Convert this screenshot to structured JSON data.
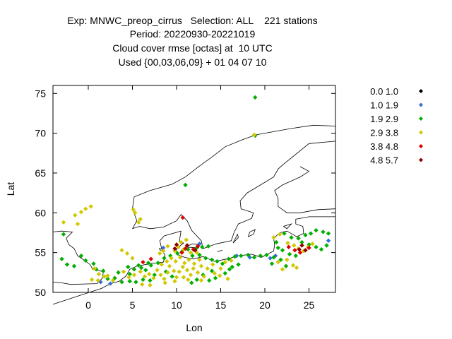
{
  "title": {
    "lines": [
      "Exp: MNWC_preop_cirrus   Selection: ALL    221 stations",
      "Period: 20220930-20221019",
      "Cloud cover rmse [octas] at  10 UTC",
      "Used {00,03,06,09} + 01 04 07 10"
    ]
  },
  "chart_data": {
    "type": "scatter",
    "title": "Cloud cover rmse [octas] at  10 UTC",
    "xlabel": "Lon",
    "ylabel": "Lat",
    "xlim": [
      -4,
      28
    ],
    "ylim": [
      50,
      76
    ],
    "xticks": [
      0,
      5,
      10,
      15,
      20,
      25
    ],
    "yticks": [
      50,
      55,
      60,
      65,
      70,
      75
    ],
    "grid": false,
    "legend_position": "right",
    "basemap": "coastlines",
    "series": [
      {
        "name": "0.0 1.0",
        "color": "#000000",
        "points": []
      },
      {
        "name": "1.0 1.9",
        "color": "#3a6fd8",
        "points": [
          [
            1.4,
            51.3
          ],
          [
            2.5,
            51.1
          ],
          [
            16.8,
            54.6
          ],
          [
            18.3,
            54.4
          ],
          [
            20.6,
            54.3
          ],
          [
            21.2,
            54.6
          ],
          [
            27.2,
            56.5
          ],
          [
            12.6,
            56.1
          ],
          [
            8.5,
            55.6
          ]
        ]
      },
      {
        "name": "1.9 2.9",
        "color": "#00b000",
        "points": [
          [
            18.9,
            74.5
          ],
          [
            18.9,
            69.7
          ],
          [
            11.0,
            63.5
          ],
          [
            -2.8,
            57.3
          ],
          [
            -0.8,
            54.6
          ],
          [
            -0.3,
            54.0
          ],
          [
            0.6,
            53.6
          ],
          [
            0.9,
            52.9
          ],
          [
            1.7,
            52.7
          ],
          [
            3.0,
            51.8
          ],
          [
            3.8,
            51.3
          ],
          [
            4.7,
            51.4
          ],
          [
            5.4,
            51.3
          ],
          [
            6.2,
            51.6
          ],
          [
            7.0,
            51.5
          ],
          [
            4.7,
            52.3
          ],
          [
            5.2,
            52.9
          ],
          [
            6.0,
            53.1
          ],
          [
            7.1,
            53.4
          ],
          [
            7.9,
            53.7
          ],
          [
            5.7,
            53.4
          ],
          [
            6.8,
            53.7
          ],
          [
            8.6,
            54.3
          ],
          [
            9.3,
            54.6
          ],
          [
            10.1,
            54.9
          ],
          [
            10.6,
            55.1
          ],
          [
            11.3,
            55.4
          ],
          [
            12.2,
            55.5
          ],
          [
            12.9,
            55.7
          ],
          [
            13.6,
            55.8
          ],
          [
            11.8,
            54.6
          ],
          [
            12.6,
            54.7
          ],
          [
            13.3,
            54.3
          ],
          [
            14.0,
            54.1
          ],
          [
            14.6,
            53.9
          ],
          [
            15.2,
            53.6
          ],
          [
            15.9,
            54.2
          ],
          [
            16.6,
            54.5
          ],
          [
            17.3,
            54.6
          ],
          [
            18.1,
            54.7
          ],
          [
            18.8,
            54.4
          ],
          [
            19.5,
            54.6
          ],
          [
            20.2,
            54.7
          ],
          [
            21.0,
            54.4
          ],
          [
            21.5,
            55.6
          ],
          [
            21.3,
            56.3
          ],
          [
            22.2,
            57.4
          ],
          [
            23.0,
            56.9
          ],
          [
            23.8,
            56.8
          ],
          [
            24.6,
            57.2
          ],
          [
            25.2,
            57.4
          ],
          [
            25.8,
            57.8
          ],
          [
            26.6,
            57.6
          ],
          [
            27.2,
            57.4
          ],
          [
            24.2,
            56.3
          ],
          [
            25.0,
            56.0
          ],
          [
            25.8,
            55.7
          ],
          [
            26.4,
            55.4
          ],
          [
            27.0,
            55.9
          ],
          [
            22.0,
            55.3
          ],
          [
            22.8,
            54.8
          ],
          [
            23.5,
            54.6
          ],
          [
            21.8,
            54.1
          ],
          [
            20.8,
            53.6
          ],
          [
            22.4,
            53.3
          ],
          [
            12.3,
            51.6
          ],
          [
            11.7,
            51.2
          ],
          [
            13.7,
            51.5
          ],
          [
            14.4,
            51.8
          ],
          [
            13.0,
            52.2
          ],
          [
            14.0,
            52.7
          ],
          [
            15.5,
            52.4
          ],
          [
            16.3,
            53.2
          ],
          [
            17.0,
            53.5
          ],
          [
            16.0,
            52.9
          ],
          [
            9.5,
            52.0
          ],
          [
            8.8,
            52.6
          ],
          [
            7.5,
            52.2
          ],
          [
            6.5,
            52.8
          ],
          [
            4.5,
            53.2
          ],
          [
            3.4,
            52.5
          ],
          [
            2.2,
            51.7
          ],
          [
            -1.6,
            53.3
          ],
          [
            -2.4,
            53.5
          ],
          [
            -3.0,
            54.2
          ]
        ]
      },
      {
        "name": "2.9 3.8",
        "color": "#d0c800",
        "points": [
          [
            18.8,
            69.8
          ],
          [
            -2.8,
            58.8
          ],
          [
            -1.5,
            59.7
          ],
          [
            -0.8,
            60.1
          ],
          [
            -0.3,
            60.5
          ],
          [
            0.3,
            60.8
          ],
          [
            -1.2,
            58.6
          ],
          [
            0.7,
            53.0
          ],
          [
            1.2,
            52.3
          ],
          [
            1.8,
            52.0
          ],
          [
            0.4,
            51.6
          ],
          [
            1.1,
            51.5
          ],
          [
            2.2,
            52.1
          ],
          [
            2.8,
            51.5
          ],
          [
            5.1,
            60.4
          ],
          [
            5.3,
            60.0
          ],
          [
            5.9,
            59.2
          ],
          [
            5.7,
            58.8
          ],
          [
            3.8,
            55.3
          ],
          [
            4.4,
            54.9
          ],
          [
            5.0,
            54.3
          ],
          [
            4.0,
            52.6
          ],
          [
            4.6,
            51.9
          ],
          [
            5.2,
            52.2
          ],
          [
            5.9,
            52.6
          ],
          [
            6.4,
            52.0
          ],
          [
            6.9,
            52.3
          ],
          [
            7.4,
            51.8
          ],
          [
            7.8,
            52.8
          ],
          [
            8.2,
            52.2
          ],
          [
            8.6,
            51.7
          ],
          [
            9.0,
            52.5
          ],
          [
            9.2,
            53.3
          ],
          [
            9.7,
            52.7
          ],
          [
            10.0,
            51.9
          ],
          [
            10.3,
            52.6
          ],
          [
            10.7,
            53.2
          ],
          [
            11.2,
            52.8
          ],
          [
            11.6,
            52.2
          ],
          [
            11.9,
            53.0
          ],
          [
            12.4,
            52.5
          ],
          [
            12.8,
            53.3
          ],
          [
            13.1,
            52.0
          ],
          [
            13.5,
            53.0
          ],
          [
            14.1,
            53.5
          ],
          [
            14.3,
            52.4
          ],
          [
            15.0,
            53.0
          ],
          [
            15.5,
            53.8
          ],
          [
            16.2,
            54.0
          ],
          [
            9.4,
            54.3
          ],
          [
            9.9,
            53.9
          ],
          [
            10.4,
            54.4
          ],
          [
            10.9,
            53.7
          ],
          [
            11.4,
            54.1
          ],
          [
            12.0,
            53.6
          ],
          [
            12.6,
            54.1
          ],
          [
            8.3,
            53.5
          ],
          [
            8.9,
            53.9
          ],
          [
            9.8,
            55.2
          ],
          [
            10.2,
            55.7
          ],
          [
            10.8,
            55.4
          ],
          [
            11.6,
            55.0
          ],
          [
            12.3,
            55.0
          ],
          [
            8.1,
            54.9
          ],
          [
            8.5,
            55.2
          ],
          [
            9.0,
            55.8
          ],
          [
            10.5,
            56.3
          ],
          [
            11.1,
            56.6
          ],
          [
            21.0,
            56.9
          ],
          [
            21.7,
            57.3
          ],
          [
            22.6,
            56.2
          ],
          [
            23.3,
            55.9
          ],
          [
            23.8,
            55.5
          ],
          [
            24.4,
            55.2
          ],
          [
            22.5,
            54.1
          ],
          [
            23.2,
            53.4
          ],
          [
            23.6,
            53.1
          ],
          [
            21.5,
            53.8
          ],
          [
            24.9,
            55.7
          ],
          [
            25.4,
            56.1
          ],
          [
            22.0,
            52.9
          ],
          [
            11.3,
            51.6
          ],
          [
            10.8,
            51.9
          ],
          [
            9.8,
            51.4
          ],
          [
            7.0,
            50.9
          ],
          [
            6.1,
            51.0
          ],
          [
            8.7,
            51.2
          ],
          [
            12.8,
            51.5
          ],
          [
            14.9,
            52.1
          ],
          [
            15.8,
            51.7
          ]
        ]
      },
      {
        "name": "3.8 4.8",
        "color": "#e00000",
        "points": [
          [
            10.7,
            59.4
          ],
          [
            6.2,
            53.8
          ],
          [
            7.1,
            54.2
          ],
          [
            11.0,
            55.5
          ],
          [
            11.9,
            55.4
          ],
          [
            12.4,
            55.8
          ],
          [
            10.6,
            55.0
          ],
          [
            24.0,
            55.0
          ],
          [
            25.0,
            55.6
          ],
          [
            22.7,
            55.7
          ],
          [
            23.4,
            55.3
          ]
        ]
      },
      {
        "name": "4.8 5.7",
        "color": "#900000",
        "points": [
          [
            10.0,
            56.0
          ],
          [
            11.2,
            55.9
          ],
          [
            12.1,
            55.3
          ],
          [
            9.8,
            55.5
          ],
          [
            23.9,
            55.4
          ],
          [
            24.6,
            55.3
          ],
          [
            24.2,
            55.9
          ]
        ]
      }
    ]
  }
}
